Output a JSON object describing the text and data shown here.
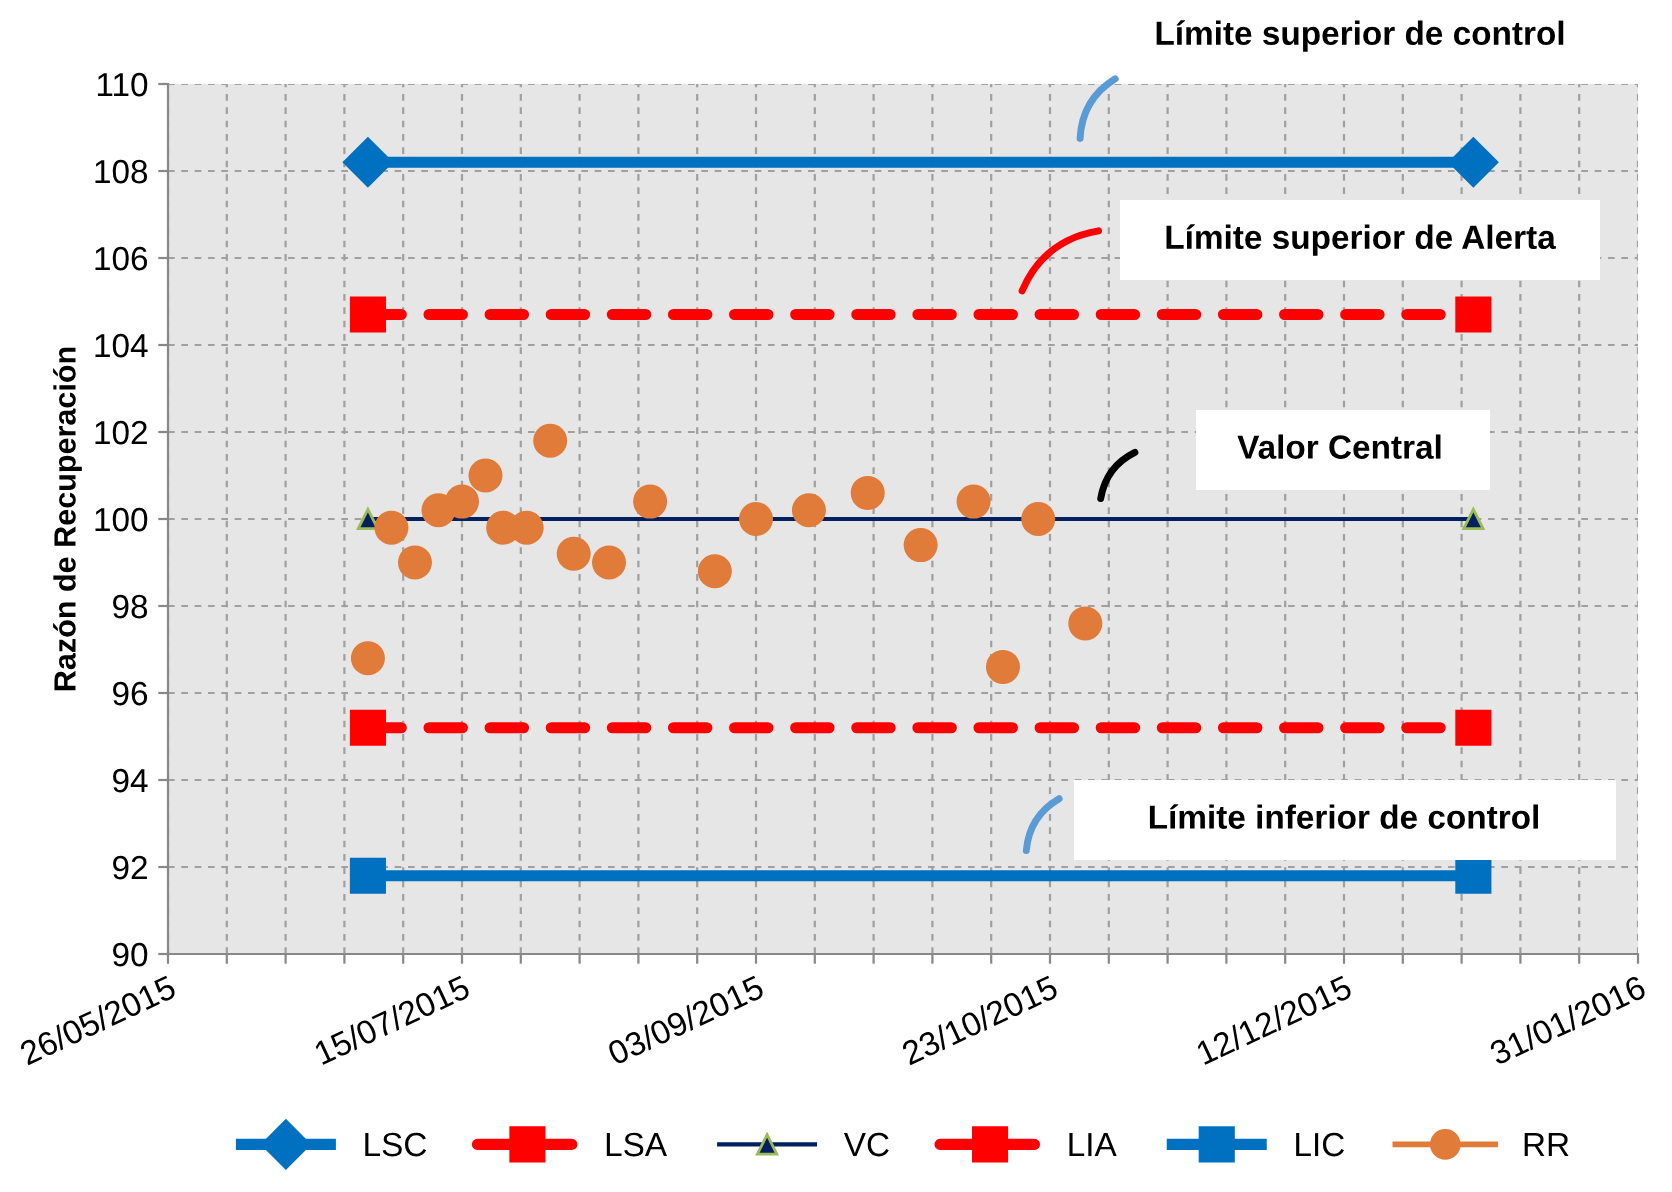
{
  "chart_data": {
    "type": "line",
    "ylabel": "Razón de Recuperación",
    "xlim": [
      "2015-05-26",
      "2016-01-31"
    ],
    "xticks": [
      {
        "value": "2015-05-26",
        "label": "26/05/2015"
      },
      {
        "value": "2015-06-05",
        "label": null
      },
      {
        "value": "2015-06-15",
        "label": null
      },
      {
        "value": "2015-06-25",
        "label": null
      },
      {
        "value": "2015-07-05",
        "label": null
      },
      {
        "value": "2015-07-15",
        "label": "15/07/2015"
      },
      {
        "value": "2015-07-25",
        "label": null
      },
      {
        "value": "2015-08-04",
        "label": null
      },
      {
        "value": "2015-08-14",
        "label": null
      },
      {
        "value": "2015-08-24",
        "label": null
      },
      {
        "value": "2015-09-03",
        "label": "03/09/2015"
      },
      {
        "value": "2015-09-13",
        "label": null
      },
      {
        "value": "2015-09-23",
        "label": null
      },
      {
        "value": "2015-10-03",
        "label": null
      },
      {
        "value": "2015-10-13",
        "label": null
      },
      {
        "value": "2015-10-23",
        "label": "23/10/2015"
      },
      {
        "value": "2015-11-02",
        "label": null
      },
      {
        "value": "2015-11-12",
        "label": null
      },
      {
        "value": "2015-11-22",
        "label": null
      },
      {
        "value": "2015-12-02",
        "label": null
      },
      {
        "value": "2015-12-12",
        "label": "12/12/2015"
      },
      {
        "value": "2015-12-22",
        "label": null
      },
      {
        "value": "2016-01-01",
        "label": null
      },
      {
        "value": "2016-01-11",
        "label": null
      },
      {
        "value": "2016-01-21",
        "label": null
      },
      {
        "value": "2016-01-31",
        "label": "31/01/2016"
      }
    ],
    "ylim": [
      90,
      110
    ],
    "yticks": [
      90,
      92,
      94,
      96,
      98,
      100,
      102,
      104,
      106,
      108,
      110
    ],
    "grid": true,
    "legend": "bottom",
    "series": [
      {
        "name": "LSC",
        "color": "#0070c0",
        "marker": "diamond",
        "line_style": "solid",
        "x": [
          "2015-06-29",
          "2016-01-03"
        ],
        "values": [
          108.2,
          108.2
        ]
      },
      {
        "name": "LSA",
        "type": "line",
        "color": "#ff0000",
        "marker": "square",
        "line_style": "dashed",
        "x": [
          "2015-06-29",
          "2016-01-03"
        ],
        "values": [
          104.7,
          104.7
        ]
      },
      {
        "name": "VC",
        "type": "line",
        "color": "#002060",
        "marker": "triangle",
        "line_style": "solid",
        "x": [
          "2015-06-29",
          "2016-01-03"
        ],
        "values": [
          100,
          100
        ]
      },
      {
        "name": "LIA",
        "type": "line",
        "color": "#ff0000",
        "marker": "square",
        "line_style": "dashed",
        "x": [
          "2015-06-29",
          "2016-01-03"
        ],
        "values": [
          95.2,
          95.2
        ]
      },
      {
        "name": "LIC",
        "type": "line",
        "color": "#0070c0",
        "marker": "square",
        "line_style": "solid",
        "x": [
          "2015-06-29",
          "2016-01-03"
        ],
        "values": [
          91.8,
          91.8
        ]
      },
      {
        "name": "RR",
        "type": "scatter",
        "color": "#e07b39",
        "marker": "circle",
        "x": [
          "2015-06-29",
          "2015-07-03",
          "2015-07-07",
          "2015-07-11",
          "2015-07-15",
          "2015-07-19",
          "2015-07-22",
          "2015-07-26",
          "2015-07-30",
          "2015-08-03",
          "2015-08-09",
          "2015-08-16",
          "2015-08-27",
          "2015-09-03",
          "2015-09-12",
          "2015-09-22",
          "2015-10-01",
          "2015-10-10",
          "2015-10-15",
          "2015-10-21",
          "2015-10-29"
        ],
        "values": [
          96.8,
          99.8,
          99.0,
          100.2,
          100.4,
          101.0,
          99.8,
          99.8,
          101.8,
          99.2,
          99.0,
          100.4,
          98.8,
          100.0,
          100.2,
          100.6,
          99.4,
          100.4,
          96.6,
          100.0,
          97.6
        ]
      }
    ],
    "annotations": [
      "Límite superior de control",
      "Límite superior de Alerta",
      "Valor Central",
      "Límite inferior de control"
    ]
  }
}
